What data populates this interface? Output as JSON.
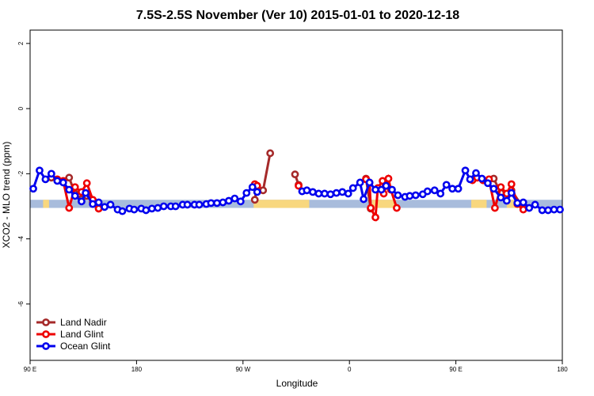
{
  "chart_data": {
    "type": "line",
    "title": "7.5S-2.5S November (Ver 10)   2015-01-01 to 2020-12-18",
    "x_label": "Longitude",
    "y_label": "XCO2 - MLO trend (ppm)",
    "xlim": [
      90,
      540
    ],
    "ylim": [
      -7.73,
      2.41
    ],
    "xticks": [
      {
        "value": 90,
        "label": "90 E"
      },
      180,
      {
        "value": 270,
        "label": "90 W"
      },
      {
        "value": 360,
        "label": "0"
      },
      {
        "value": 450,
        "label": "90 E"
      },
      {
        "value": 540,
        "label": "180"
      }
    ],
    "yticks": [
      2,
      0,
      -2,
      -4,
      -6
    ],
    "legend": "bottom-left",
    "band": [
      -3.05,
      -2.8
    ],
    "band_color": "#a8bcdc",
    "land_color": "#f8d77e",
    "land_segments": [
      [
        101,
        106
      ],
      [
        279,
        326
      ],
      [
        379,
        399
      ],
      [
        463,
        476
      ],
      [
        493,
        507
      ]
    ],
    "series": [
      {
        "name": "Land Nadir",
        "color": "#a52a2a",
        "x": [
          108,
          113,
          123,
          128,
          133.5,
          138,
          143,
          148,
          null,
          280,
          282,
          287,
          293,
          null,
          314,
          317,
          null,
          374,
          378,
          null,
          473,
          482,
          488,
          497,
          507
        ],
        "values": [
          -2.12,
          -2.2,
          -2.12,
          -2.61,
          -2.78,
          -2.68,
          -2.88,
          -3.07,
          null,
          -2.8,
          -2.37,
          -2.51,
          -1.37,
          null,
          -2.02,
          -2.34,
          null,
          -2.15,
          -3.07,
          null,
          -2.2,
          -2.15,
          -2.59,
          -2.51,
          -3.05
        ]
      },
      {
        "name": "Land Glint",
        "color": "#ee0000",
        "x": [
          113,
          118,
          123,
          128,
          133.5,
          138,
          143,
          148,
          null,
          280,
          282,
          null,
          317,
          null,
          374,
          377,
          378,
          382,
          384,
          388,
          389,
          393,
          395,
          400,
          null,
          464,
          468,
          473,
          478,
          483,
          488,
          493,
          497,
          502,
          507
        ],
        "values": [
          -2.17,
          -2.22,
          -3.05,
          -2.41,
          -2.56,
          -2.29,
          -2.8,
          -3.07,
          null,
          -2.32,
          -2.37,
          null,
          -2.37,
          null,
          -2.17,
          -2.27,
          -3.05,
          -3.34,
          -2.44,
          -2.22,
          -2.61,
          -2.15,
          -2.49,
          -3.05,
          null,
          -2.2,
          -2.12,
          -2.2,
          -2.17,
          -3.05,
          -2.41,
          -2.61,
          -2.32,
          -2.93,
          -3.1
        ]
      },
      {
        "name": "Ocean Glint",
        "color": "#0000ee",
        "x": [
          92.7,
          98,
          103,
          108,
          113,
          118,
          123,
          128,
          133.5,
          137,
          143,
          148,
          153,
          158,
          164,
          168,
          174,
          178,
          184,
          188,
          193,
          198,
          203,
          209,
          213,
          219,
          223,
          229,
          233,
          239,
          243,
          248,
          253,
          258,
          263,
          268,
          273,
          278,
          282,
          null,
          320,
          324,
          329,
          334,
          339,
          344,
          349,
          354,
          359,
          363,
          369,
          372,
          377,
          382,
          387,
          391,
          396,
          401,
          407,
          411,
          416,
          422,
          426,
          432,
          437,
          442,
          447,
          452,
          458,
          462,
          467,
          472,
          477,
          482,
          488,
          493,
          497,
          502,
          507,
          512,
          517,
          523,
          528,
          533,
          538
        ],
        "values": [
          -2.46,
          -1.9,
          -2.17,
          -2.0,
          -2.22,
          -2.27,
          -2.49,
          -2.68,
          -2.85,
          -2.59,
          -2.93,
          -2.88,
          -3.02,
          -2.95,
          -3.1,
          -3.15,
          -3.07,
          -3.1,
          -3.07,
          -3.12,
          -3.07,
          -3.05,
          -3.0,
          -3.0,
          -3.0,
          -2.95,
          -2.95,
          -2.95,
          -2.95,
          -2.93,
          -2.9,
          -2.9,
          -2.88,
          -2.83,
          -2.76,
          -2.85,
          -2.59,
          -2.41,
          -2.56,
          null,
          -2.54,
          -2.51,
          -2.56,
          -2.61,
          -2.61,
          -2.63,
          -2.59,
          -2.56,
          -2.61,
          -2.44,
          -2.27,
          -2.78,
          -2.27,
          -2.49,
          -2.49,
          -2.37,
          -2.49,
          -2.66,
          -2.71,
          -2.68,
          -2.66,
          -2.63,
          -2.54,
          -2.51,
          -2.61,
          -2.34,
          -2.46,
          -2.46,
          -1.9,
          -2.17,
          -1.98,
          -2.15,
          -2.29,
          -2.46,
          -2.73,
          -2.83,
          -2.59,
          -2.9,
          -2.88,
          -3.05,
          -2.95,
          -3.12,
          -3.12,
          -3.1,
          -3.1
        ]
      }
    ]
  }
}
